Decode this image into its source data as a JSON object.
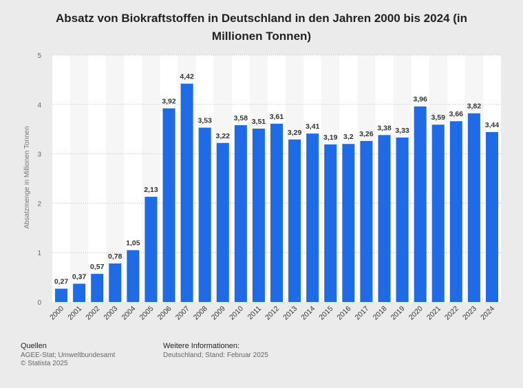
{
  "chart_data": {
    "type": "bar",
    "title": "Absatz von Biokraftstoffen in Deutschland in den Jahren 2000 bis 2024 (in Millionen Tonnen)",
    "xlabel": "",
    "ylabel": "Absatzmenge in Millionen Tonnen",
    "ylim": [
      0,
      5
    ],
    "yticks": [
      "0",
      "1",
      "2",
      "3",
      "4",
      "5"
    ],
    "grid": true,
    "bar_color": "#1f6ae6",
    "categories": [
      "2000",
      "2001",
      "2002",
      "2003",
      "2004",
      "2005",
      "2006",
      "2007",
      "2008",
      "2009",
      "2010",
      "2011",
      "2012",
      "2013",
      "2014",
      "2015",
      "2016",
      "2017",
      "2018",
      "2019",
      "2020",
      "2021",
      "2022",
      "2023",
      "2024"
    ],
    "values": [
      0.27,
      0.37,
      0.57,
      0.78,
      1.05,
      2.13,
      3.92,
      4.42,
      3.53,
      3.22,
      3.58,
      3.51,
      3.61,
      3.29,
      3.41,
      3.19,
      3.2,
      3.26,
      3.38,
      3.33,
      3.96,
      3.59,
      3.66,
      3.82,
      3.44
    ],
    "labels": [
      "0,27",
      "0,37",
      "0,57",
      "0,78",
      "1,05",
      "2,13",
      "3,92",
      "4,42",
      "3,53",
      "3,22",
      "3,58",
      "3,51",
      "3,61",
      "3,29",
      "3,41",
      "3,19",
      "3,2",
      "3,26",
      "3,38",
      "3,33",
      "3,96",
      "3,59",
      "3,66",
      "3,82",
      "3,44"
    ]
  },
  "footer": {
    "sources_heading": "Quellen",
    "sources_line1": "AGEE-Stat; Umweltbundesamt",
    "sources_line2": "© Statista 2025",
    "info_heading": "Weitere Informationen:",
    "info_line1": "Deutschland; Stand: Februar 2025"
  }
}
